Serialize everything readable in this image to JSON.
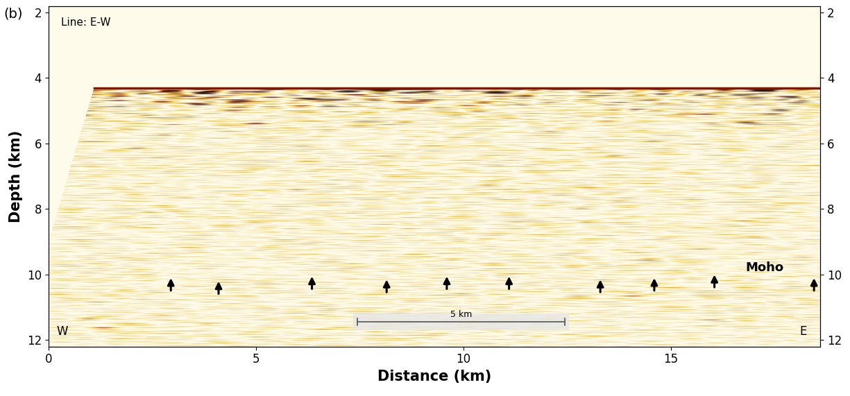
{
  "chart_data": {
    "type": "seismic_section",
    "panel_label": "(b)",
    "line_label": "Line: E-W",
    "xlabel": "Distance (km)",
    "ylabel": "Depth (km)",
    "xlim": [
      0,
      18.6
    ],
    "ylim": [
      12.2,
      1.8
    ],
    "xticks": [
      0,
      5,
      10,
      15
    ],
    "yticks": [
      2,
      4,
      6,
      8,
      10,
      12
    ],
    "y2lim": [
      12.2,
      1.8
    ],
    "y2ticks": [
      2,
      4,
      6,
      8,
      10,
      12
    ],
    "data_edge": {
      "x": [
        0,
        1.1,
        18.6
      ],
      "y": [
        9.0,
        4.3,
        4.3
      ]
    },
    "moho_label": {
      "text": "Moho",
      "x": 16.8,
      "y": 9.9
    },
    "arrows": {
      "x": [
        2.95,
        4.1,
        6.35,
        8.15,
        9.6,
        11.1,
        13.3,
        14.6,
        16.05,
        18.45
      ],
      "y": [
        10.05,
        10.15,
        10.0,
        10.1,
        10.0,
        10.0,
        10.1,
        10.05,
        9.95,
        10.05
      ]
    },
    "scale_bar": {
      "label": "5 km",
      "x": [
        7.45,
        12.45
      ],
      "y": 11.45
    },
    "west_label": {
      "text": "W",
      "x": 0.2,
      "y": 11.85
    },
    "east_label": {
      "text": "E",
      "x": 18.1,
      "y": 11.85
    },
    "grid": false
  }
}
